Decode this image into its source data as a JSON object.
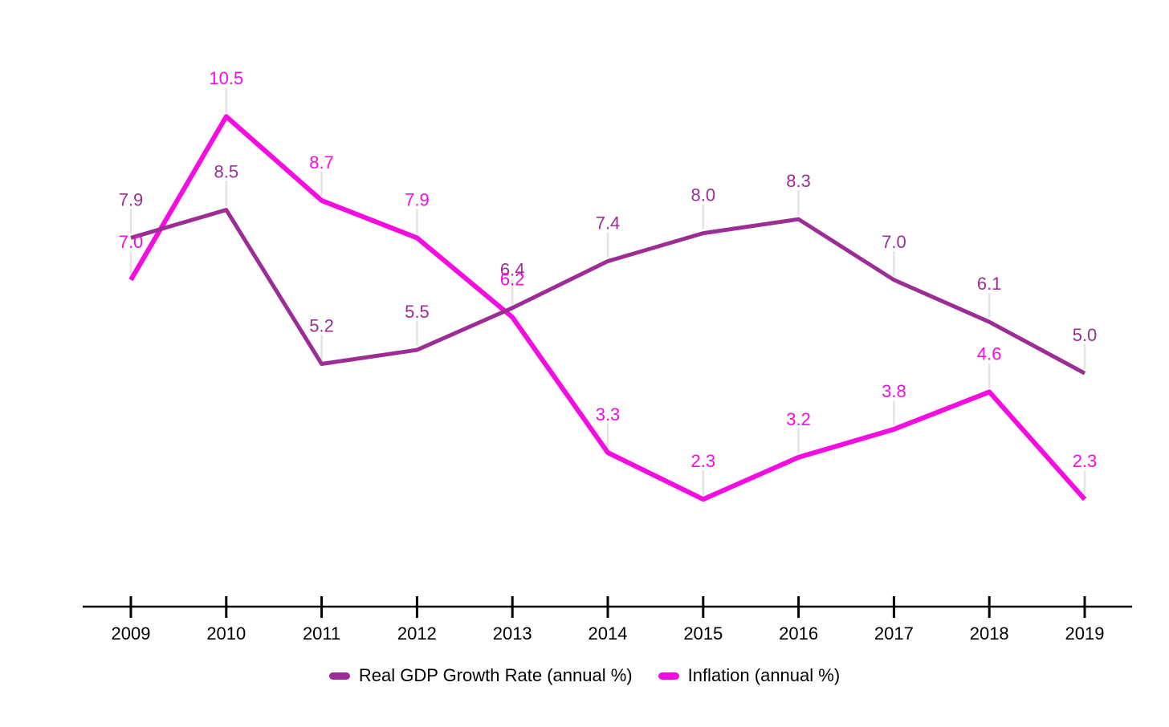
{
  "chart_data": {
    "type": "line",
    "x": [
      2009,
      2010,
      2011,
      2012,
      2013,
      2014,
      2015,
      2016,
      2017,
      2018,
      2019
    ],
    "series": [
      {
        "name": "Real GDP Growth Rate (annual %)",
        "color": "#9b2d94",
        "values": [
          7.9,
          8.5,
          5.2,
          5.5,
          6.4,
          7.4,
          8.0,
          8.3,
          7.0,
          6.1,
          5.0
        ]
      },
      {
        "name": "Inflation (annual %)",
        "color": "#f50ce0",
        "values": [
          7.0,
          10.5,
          8.7,
          7.9,
          6.2,
          3.3,
          2.3,
          3.2,
          3.8,
          4.6,
          2.3
        ]
      }
    ],
    "value_label_decimals": 1,
    "xlabel": "",
    "ylabel": "",
    "ylim": [
      0,
      13
    ],
    "grid": false,
    "y_axis_visible": false,
    "x_axis_color": "#000000",
    "x_tick_label_color": "#000000",
    "leader_line_color": "#e4e4e4",
    "legend_position": "bottom"
  }
}
